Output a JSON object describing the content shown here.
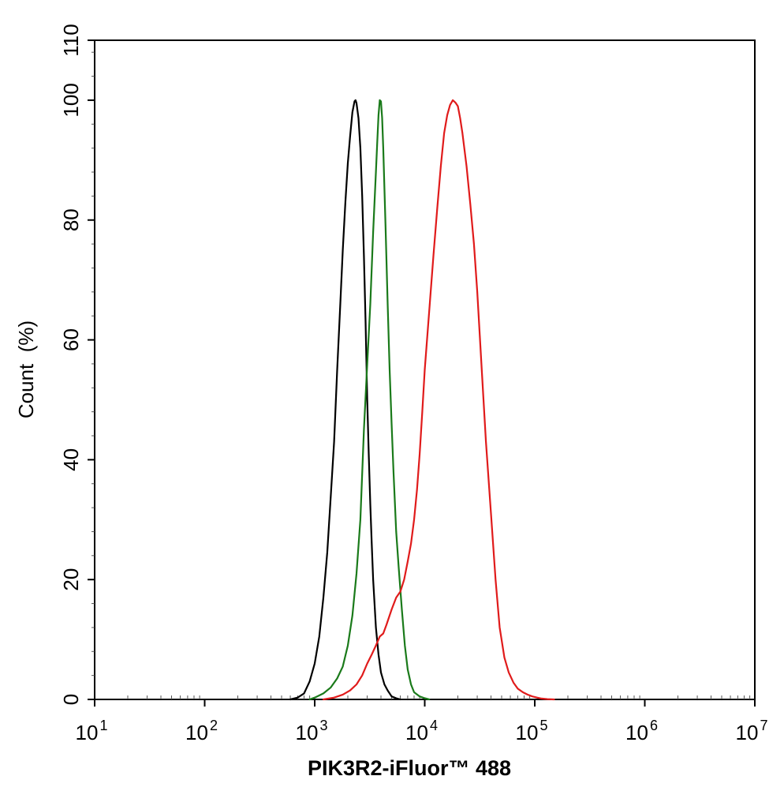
{
  "chart_data": {
    "type": "line",
    "title": "",
    "xlabel": "PIK3R2-iFluor™ 488",
    "ylabel": "Count  (%)",
    "x_scale": "log",
    "xlim": [
      10,
      10000000
    ],
    "ylim": [
      0,
      110
    ],
    "x_ticks": [
      {
        "base": "10",
        "exp": "1",
        "value": 10
      },
      {
        "base": "10",
        "exp": "2",
        "value": 100
      },
      {
        "base": "10",
        "exp": "3",
        "value": 1000
      },
      {
        "base": "10",
        "exp": "4",
        "value": 10000
      },
      {
        "base": "10",
        "exp": "5",
        "value": 100000
      },
      {
        "base": "10",
        "exp": "6",
        "value": 1000000
      },
      {
        "base": "10",
        "exp": "7",
        "value": 10000000
      }
    ],
    "y_ticks": [
      "0",
      "20",
      "40",
      "60",
      "80",
      "100",
      "110"
    ],
    "y_tick_values": [
      0,
      20,
      40,
      60,
      80,
      100,
      110
    ],
    "grid": false,
    "legend": "none",
    "series": [
      {
        "color": "#000000",
        "x": [
          600,
          700,
          800,
          900,
          1000,
          1100,
          1200,
          1300,
          1400,
          1500,
          1600,
          1700,
          1800,
          1900,
          2000,
          2100,
          2200,
          2300,
          2350,
          2400,
          2500,
          2600,
          2700,
          2800,
          2900,
          3000,
          3100,
          3200,
          3300,
          3400,
          3600,
          3800,
          4000,
          4300,
          4600,
          5000,
          5500,
          6000
        ],
        "y": [
          0,
          0.3,
          1,
          3,
          6,
          10.5,
          17,
          24.5,
          34,
          43,
          55,
          65,
          75,
          83,
          89.5,
          94,
          98,
          99.8,
          100,
          99.5,
          97,
          92,
          84,
          74,
          63,
          50,
          41,
          32.5,
          26,
          20,
          12,
          7.5,
          4.5,
          2.5,
          1.5,
          0.5,
          0.2,
          0
        ]
      },
      {
        "color": "#1a7a1a",
        "x": [
          900,
          1000,
          1200,
          1400,
          1600,
          1800,
          2000,
          2200,
          2400,
          2600,
          2800,
          3000,
          3200,
          3400,
          3600,
          3700,
          3800,
          3900,
          4000,
          4100,
          4200,
          4400,
          4600,
          4800,
          5000,
          5200,
          5500,
          5800,
          6200,
          6600,
          7000,
          7500,
          8000,
          9000,
          10000,
          11000
        ],
        "y": [
          0,
          0.3,
          1,
          2,
          3.5,
          5.5,
          9,
          14,
          21,
          30,
          45,
          56,
          66,
          78,
          88,
          93,
          97.5,
          100,
          99.8,
          97,
          92,
          79,
          66,
          55,
          46,
          38,
          28,
          22,
          15,
          9,
          5,
          2.5,
          1.2,
          0.5,
          0.2,
          0
        ]
      },
      {
        "color": "#e01b1b",
        "x": [
          1200,
          1500,
          1800,
          2100,
          2400,
          2700,
          3000,
          3300,
          3600,
          3900,
          4200,
          4500,
          5000,
          5500,
          6000,
          6500,
          7000,
          7500,
          8000,
          8500,
          9000,
          9500,
          10000,
          11000,
          12000,
          13000,
          14000,
          15000,
          16000,
          17000,
          18000,
          19000,
          20000,
          21000,
          22000,
          24000,
          26000,
          28000,
          30000,
          33000,
          36000,
          40000,
          44000,
          48000,
          53000,
          58000,
          64000,
          70000,
          78000,
          86000,
          95000,
          105000,
          115000,
          130000,
          150000
        ],
        "y": [
          0,
          0.3,
          0.8,
          1.5,
          2.5,
          4,
          6,
          7.5,
          9,
          10.5,
          11,
          12.5,
          15,
          17,
          18,
          20,
          23,
          26,
          30,
          35,
          41,
          48,
          55,
          65,
          74,
          82,
          89,
          94.5,
          97.5,
          99.2,
          100,
          99.6,
          99,
          97,
          94.5,
          89,
          82.5,
          76,
          68,
          55,
          43,
          31,
          20,
          12,
          7,
          4.5,
          2.8,
          1.8,
          1.2,
          0.8,
          0.5,
          0.3,
          0.15,
          0.05,
          0
        ]
      }
    ]
  }
}
